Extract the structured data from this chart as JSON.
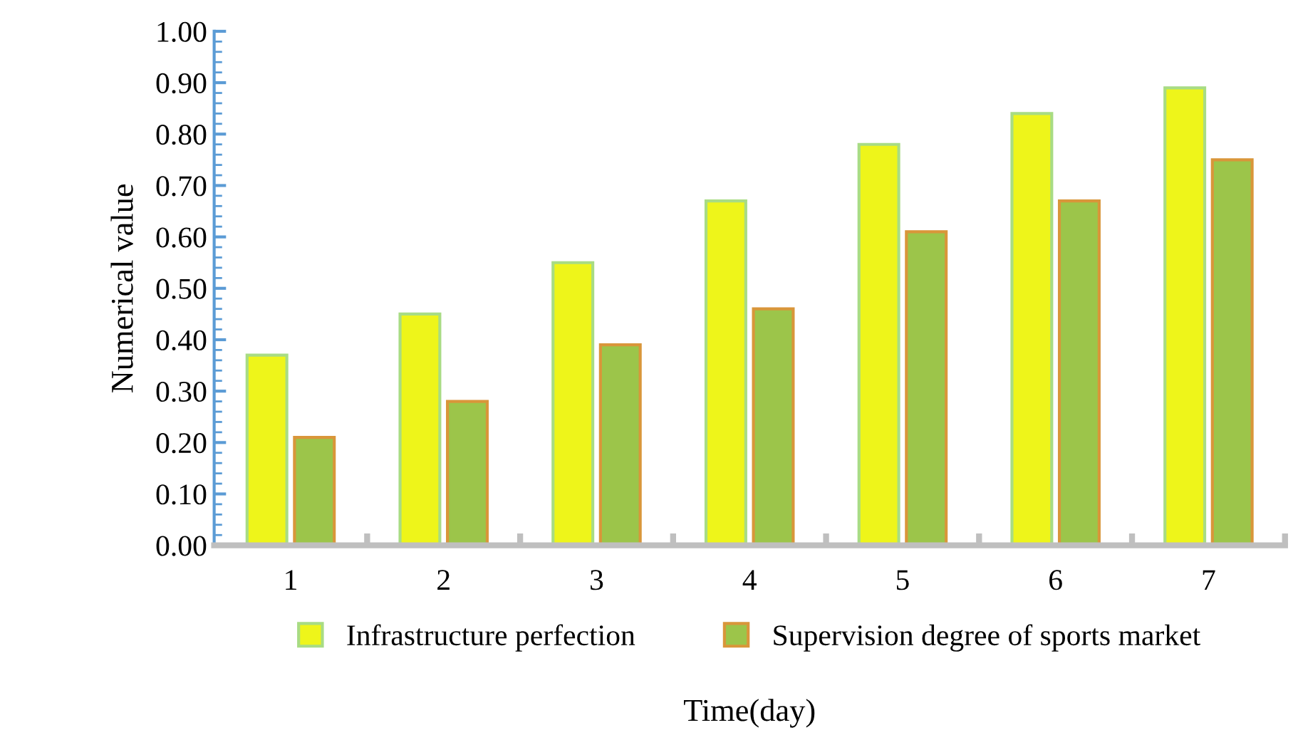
{
  "chart_data": {
    "type": "bar",
    "xlabel": "Time(day)",
    "ylabel": "Numerical value",
    "categories": [
      "1",
      "2",
      "3",
      "4",
      "5",
      "6",
      "7"
    ],
    "series": [
      {
        "name": "Infrastructure perfection",
        "color": "#eef51a",
        "values": [
          0.37,
          0.45,
          0.55,
          0.67,
          0.78,
          0.84,
          0.89
        ]
      },
      {
        "name": "Supervision degree of sports market",
        "color": "#9cc54a",
        "values": [
          0.21,
          0.28,
          0.39,
          0.46,
          0.61,
          0.67,
          0.75
        ]
      }
    ],
    "ylim": [
      0,
      1
    ],
    "yticks": [
      {
        "value": 0,
        "label": "0.00"
      },
      {
        "value": 0.1,
        "label": "0.10"
      },
      {
        "value": 0.2,
        "label": "0.20"
      },
      {
        "value": 0.3,
        "label": "0.30"
      },
      {
        "value": 0.4,
        "label": "0.40"
      },
      {
        "value": 0.5,
        "label": "0.50"
      },
      {
        "value": 0.6,
        "label": "0.60"
      },
      {
        "value": 0.7,
        "label": "0.70"
      },
      {
        "value": 0.8,
        "label": "0.80"
      },
      {
        "value": 0.9,
        "label": "0.90"
      },
      {
        "value": 1,
        "label": "1.00"
      }
    ],
    "grid": false,
    "legend": "bottom"
  }
}
